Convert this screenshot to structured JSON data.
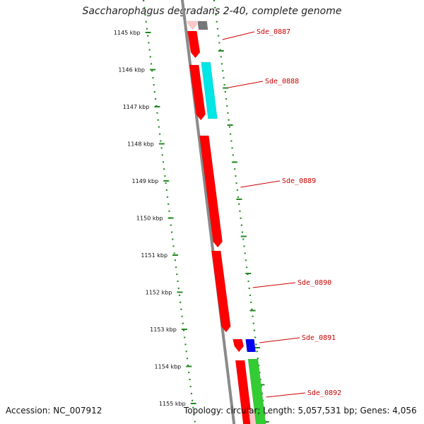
{
  "title": "Saccharophagus degradans 2-40, complete genome",
  "footer": {
    "accession": "Accession: NC_007912",
    "topology": "Topology: circular; Length: 5,057,531 bp; Genes: 4,056"
  },
  "scale": {
    "ticks": [
      "1145 kbp",
      "1146 kbp",
      "1147 kbp",
      "1148 kbp",
      "1149 kbp",
      "1150 kbp",
      "1151 kbp",
      "1152 kbp",
      "1153 kbp",
      "1154 kbp",
      "1155 kbp"
    ]
  },
  "genes": [
    {
      "label": "Sde_0887",
      "track": "forward",
      "color": "#ff0000"
    },
    {
      "label": "Sde_0888",
      "track": "forward",
      "color": "#ff0000"
    },
    {
      "label": "Sde_0889",
      "track": "forward",
      "color": "#ff0000"
    },
    {
      "label": "Sde_0890",
      "track": "forward",
      "color": "#ff0000"
    },
    {
      "label": "Sde_0891",
      "track": "forward",
      "color": "#ff0000"
    },
    {
      "label": "Sde_0892",
      "track": "forward",
      "color": "#ff0000"
    }
  ],
  "colors": {
    "cds": "#ff0000",
    "cds_light": "#ffc8c8",
    "cyan_feature": "#00e5e5",
    "blue_feature": "#0000ee",
    "green_feature": "#33cc33",
    "grey_feature": "#777777",
    "backbone": "#8a8a8a",
    "dots": "#228822",
    "label": "#cc0000"
  }
}
